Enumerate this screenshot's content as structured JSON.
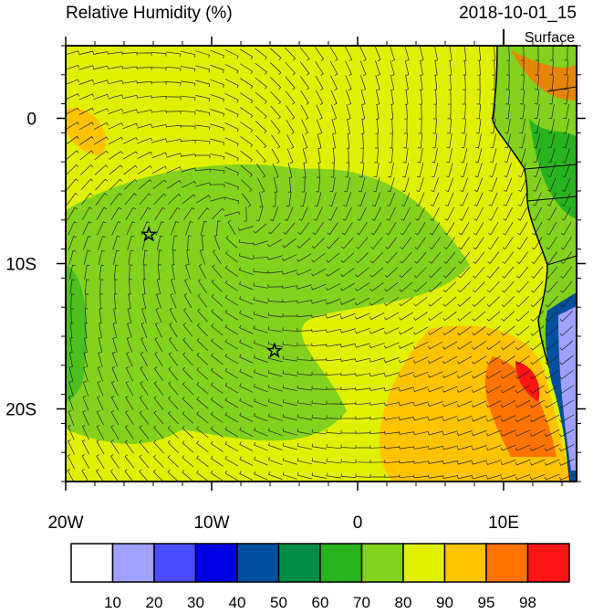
{
  "header": {
    "title": "Relative Humidity (%)",
    "time": "2018-10-01_15",
    "level": "Surface"
  },
  "map": {
    "xlim": [
      -20,
      15
    ],
    "ylim": [
      -25,
      5
    ],
    "xticks": [
      {
        "value": -20,
        "label": "20W"
      },
      {
        "value": -10,
        "label": "10W"
      },
      {
        "value": 0,
        "label": "0"
      },
      {
        "value": 10,
        "label": "10E"
      }
    ],
    "yticks": [
      {
        "value": 0,
        "label": "0"
      },
      {
        "value": -10,
        "label": "10S"
      },
      {
        "value": -20,
        "label": "20S"
      }
    ],
    "markers": [
      {
        "lon": -14.3,
        "lat": -8
      },
      {
        "lon": -5.7,
        "lat": -16
      }
    ]
  },
  "colorbar": {
    "levels": [
      10,
      20,
      30,
      40,
      50,
      60,
      70,
      80,
      90,
      95,
      98
    ],
    "colors": [
      "#ffffff",
      "#a0a0ff",
      "#4b4bff",
      "#0000e6",
      "#0050a0",
      "#008c46",
      "#28b41e",
      "#82d21e",
      "#e1f000",
      "#ffc300",
      "#ff7300",
      "#ff1414"
    ]
  }
}
